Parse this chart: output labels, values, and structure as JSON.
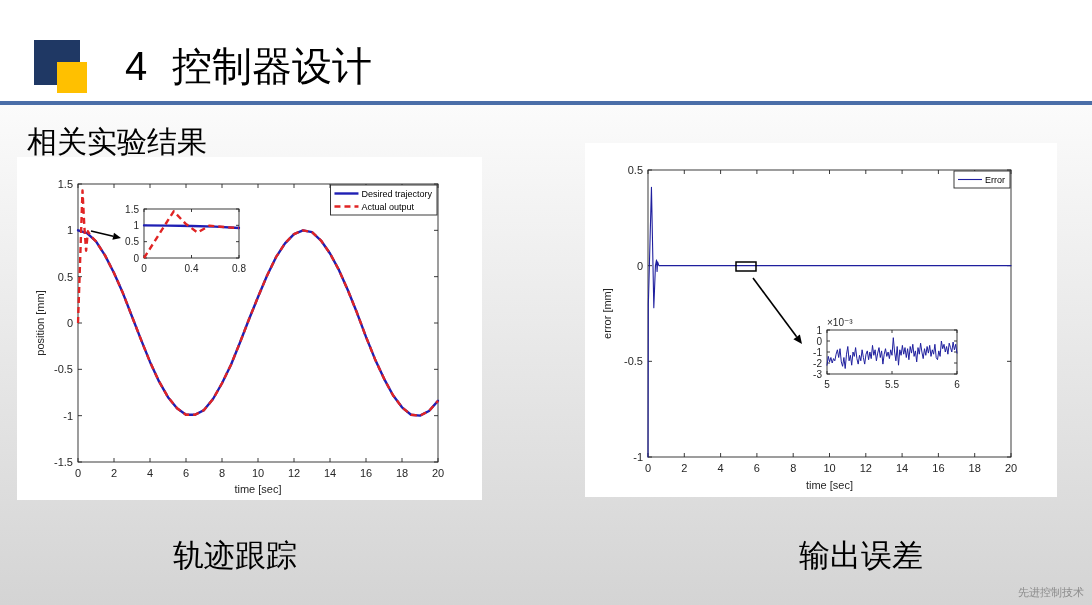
{
  "chart_data": [
    {
      "type": "other",
      "title": "4 控制器设计",
      "subtitle": "相关实验结果",
      "annotations": [
        "先进控制技术"
      ]
    },
    {
      "type": "line",
      "xlim": [
        0,
        20
      ],
      "ylim": [
        -1.5,
        1.5
      ],
      "xticks": [
        0,
        2,
        4,
        6,
        8,
        10,
        12,
        14,
        16,
        18,
        20
      ],
      "yticks": [
        -1.5,
        -1,
        -0.5,
        0,
        0.5,
        1,
        1.5
      ],
      "xlabel": "time [sec]",
      "ylabel": "position [mm]",
      "legend": "top right",
      "annotations": [
        "轨迹跟踪"
      ],
      "series": [
        {
          "name": "Desired trajectory",
          "color": "#1f1fb4",
          "line_style": "solid",
          "x": [
            0,
            0.5,
            1,
            1.5,
            2,
            2.5,
            3,
            3.5,
            4,
            4.5,
            5,
            5.5,
            6,
            6.5,
            7,
            7.5,
            8,
            8.5,
            9,
            9.5,
            10,
            10.5,
            11,
            11.5,
            12,
            12.5,
            13,
            13.5,
            14,
            14.5,
            15,
            15.5,
            16,
            16.5,
            17,
            17.5,
            18,
            18.5,
            19,
            19.5,
            20
          ],
          "values": [
            1,
            0.97,
            0.88,
            0.73,
            0.54,
            0.32,
            0.07,
            -0.18,
            -0.42,
            -0.63,
            -0.8,
            -0.92,
            -0.99,
            -0.99,
            -0.94,
            -0.82,
            -0.65,
            -0.45,
            -0.21,
            0.04,
            0.28,
            0.51,
            0.71,
            0.86,
            0.96,
            1,
            0.98,
            0.89,
            0.75,
            0.57,
            0.35,
            0.11,
            -0.15,
            -0.39,
            -0.6,
            -0.78,
            -0.91,
            -0.99,
            -1,
            -0.95,
            -0.84
          ]
        },
        {
          "name": "Actual output",
          "color": "#e02424",
          "line_style": "dashed",
          "x": [
            0,
            0.25,
            0.35,
            0.45,
            0.55,
            0.7,
            1,
            1.5,
            2,
            2.5,
            3,
            3.5,
            4,
            4.5,
            5,
            5.5,
            6,
            6.5,
            7,
            7.5,
            8,
            8.5,
            9,
            9.5,
            10,
            10.5,
            11,
            11.5,
            12,
            12.5,
            13,
            13.5,
            14,
            14.5,
            15,
            15.5,
            16,
            16.5,
            17,
            17.5,
            18,
            18.5,
            19,
            19.5,
            20
          ],
          "values": [
            0,
            1.43,
            1.05,
            0.78,
            0.99,
            0.94,
            0.88,
            0.73,
            0.54,
            0.32,
            0.07,
            -0.18,
            -0.42,
            -0.63,
            -0.8,
            -0.92,
            -0.99,
            -0.99,
            -0.94,
            -0.82,
            -0.65,
            -0.45,
            -0.21,
            0.04,
            0.28,
            0.51,
            0.71,
            0.86,
            0.96,
            1,
            0.98,
            0.89,
            0.75,
            0.57,
            0.35,
            0.11,
            -0.15,
            -0.39,
            -0.6,
            -0.78,
            -0.91,
            -0.99,
            -1,
            -0.95,
            -0.84
          ]
        }
      ]
    },
    {
      "type": "line",
      "xlim": [
        0,
        0.8
      ],
      "ylim": [
        0,
        1.5
      ],
      "xticks": [
        0,
        0.4,
        0.8
      ],
      "yticks": [
        0,
        0.5,
        1,
        1.5
      ],
      "series": [
        {
          "color": "#1f1fb4",
          "line_style": "solid",
          "x": [
            0,
            0.2,
            0.4,
            0.6,
            0.8
          ],
          "values": [
            1,
            0.99,
            0.98,
            0.96,
            0.92
          ]
        },
        {
          "color": "#e02424",
          "line_style": "dashed",
          "x": [
            0,
            0.25,
            0.35,
            0.45,
            0.55,
            0.7,
            0.8
          ],
          "values": [
            0,
            1.43,
            1.05,
            0.78,
            0.99,
            0.94,
            0.92
          ]
        }
      ]
    },
    {
      "type": "line",
      "xlim": [
        0,
        20
      ],
      "ylim": [
        -1,
        0.5
      ],
      "xticks": [
        0,
        2,
        4,
        6,
        8,
        10,
        12,
        14,
        16,
        18,
        20
      ],
      "yticks": [
        -1,
        -0.5,
        0,
        0.5
      ],
      "xlabel": "time [sec]",
      "ylabel": "error [mm]",
      "legend": "top right",
      "annotations": [
        "输出误差"
      ],
      "series": [
        {
          "name": "Error",
          "color": "#1f1f9e",
          "line_style": "solid",
          "x": [
            0,
            0.02,
            0.19,
            0.32,
            0.41,
            0.47,
            0.5,
            0.53,
            0.6,
            1,
            2,
            3,
            4,
            5,
            6,
            7,
            8,
            9,
            10,
            11,
            12,
            13,
            14,
            15,
            16,
            17,
            18,
            19,
            20
          ],
          "values": [
            -1,
            -0.2,
            0.41,
            -0.22,
            0,
            0.03,
            -0.03,
            0.02,
            0,
            0,
            0,
            0,
            0,
            0,
            0,
            0,
            0,
            0,
            0,
            0,
            0,
            0,
            0,
            0,
            0,
            0,
            0,
            0,
            0
          ]
        }
      ]
    },
    {
      "type": "line",
      "xlim": [
        5,
        6
      ],
      "ylim": [
        -3,
        1
      ],
      "xticks": [
        5,
        5.5,
        6
      ],
      "yticks": [
        -3,
        -2,
        -1,
        0,
        1
      ],
      "annotations": [
        "×10⁻³"
      ],
      "x": [
        5,
        5.01,
        5.02,
        5.03,
        5.04,
        5.05,
        5.06,
        5.07,
        5.08,
        5.09,
        5.1,
        5.11,
        5.12,
        5.13,
        5.14,
        5.15,
        5.16,
        5.17,
        5.18,
        5.19,
        5.2,
        5.21,
        5.22,
        5.23,
        5.24,
        5.25,
        5.26,
        5.27,
        5.28,
        5.29,
        5.3,
        5.31,
        5.32,
        5.33,
        5.34,
        5.35,
        5.36,
        5.37,
        5.38,
        5.39,
        5.4,
        5.41,
        5.42,
        5.43,
        5.44,
        5.45,
        5.46,
        5.47,
        5.48,
        5.49,
        5.5,
        5.51,
        5.52,
        5.53,
        5.54,
        5.55,
        5.56,
        5.57,
        5.58,
        5.59,
        5.6,
        5.61,
        5.62,
        5.63,
        5.64,
        5.65,
        5.66,
        5.67,
        5.68,
        5.69,
        5.7,
        5.71,
        5.72,
        5.73,
        5.74,
        5.75,
        5.76,
        5.77,
        5.78,
        5.79,
        5.8,
        5.81,
        5.82,
        5.83,
        5.84,
        5.85,
        5.86,
        5.87,
        5.88,
        5.89,
        5.9,
        5.91,
        5.92,
        5.93,
        5.94,
        5.95,
        5.96,
        5.97,
        5.98,
        5.99,
        6
      ],
      "series": [
        {
          "color": "#1f1f9e",
          "line_style": "solid",
          "values": [
            -2.2,
            -1.4,
            -1.9,
            -1.5,
            -2.0,
            -1.6,
            -1.8,
            -1.2,
            -0.8,
            -1.5,
            -0.7,
            -1.9,
            -2.3,
            -1.5,
            -2.5,
            -1.2,
            -0.5,
            -1.8,
            -1.3,
            -2.2,
            -1.0,
            -1.4,
            -0.6,
            -1.6,
            -2.1,
            -1.3,
            -1.8,
            -0.8,
            -1.5,
            -2.1,
            -1.2,
            -0.9,
            -1.7,
            -1.0,
            -1.6,
            -0.4,
            -1.3,
            -0.8,
            -1.8,
            -1.1,
            -0.6,
            -1.5,
            -0.9,
            -2.1,
            -1.2,
            -0.7,
            -1.4,
            -1.0,
            -1.6,
            -0.8,
            -1.3,
            0.3,
            -1.0,
            -1.8,
            -0.5,
            -2.2,
            -0.8,
            -1.3,
            -0.4,
            -1.2,
            -0.6,
            -1.5,
            -0.7,
            -1.7,
            -0.5,
            -1.1,
            -0.3,
            -1.4,
            -0.9,
            -1.9,
            -0.6,
            -1.2,
            -0.2,
            -1.0,
            -1.6,
            -0.7,
            -1.3,
            -0.5,
            -1.1,
            -0.4,
            -1.4,
            -0.8,
            -1.2,
            -0.3,
            -1.5,
            -1.7,
            -0.9,
            -1.4,
            0.0,
            -0.7,
            -0.3,
            -1.0,
            -0.5,
            -1.2,
            -0.2,
            -0.6,
            -1.0,
            -0.1,
            -0.8,
            -0.3,
            -1.1
          ]
        }
      ]
    }
  ]
}
